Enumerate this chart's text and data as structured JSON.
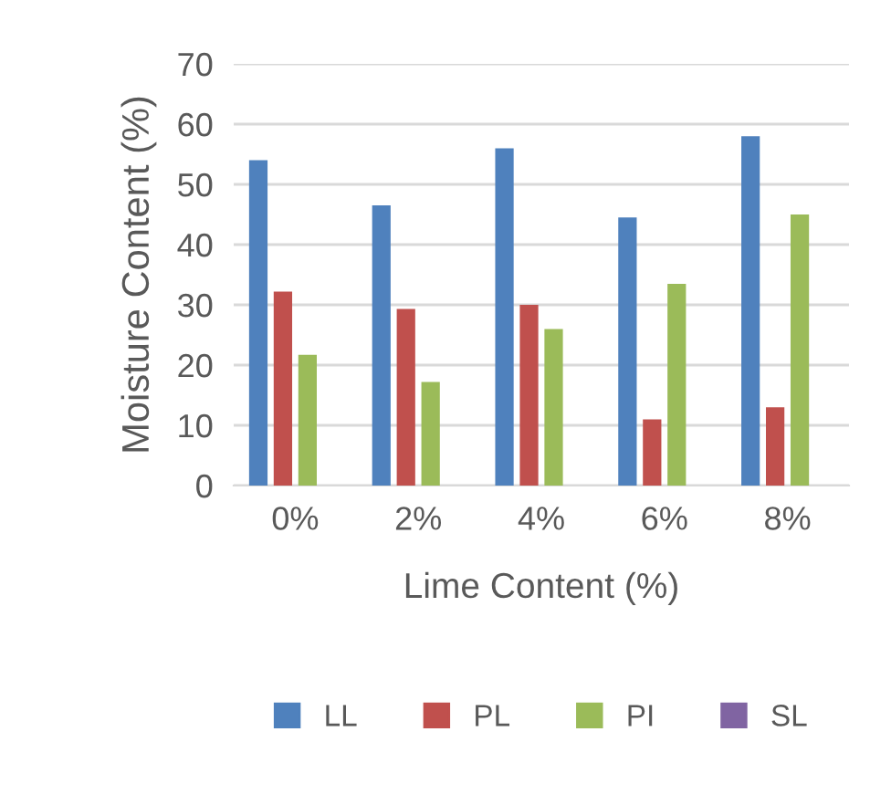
{
  "chart_data": {
    "type": "bar",
    "xlabel": "Lime Content (%)",
    "ylabel": "Moisture Content (%)",
    "categories": [
      "0%",
      "2%",
      "4%",
      "6%",
      "8%"
    ],
    "series": [
      {
        "name": "LL",
        "color": "#4f81bd",
        "values": [
          54,
          46.5,
          56,
          44.5,
          58
        ]
      },
      {
        "name": "PL",
        "color": "#c0504d",
        "values": [
          32.2,
          29.3,
          30,
          11,
          13
        ]
      },
      {
        "name": "PI",
        "color": "#9bbb59",
        "values": [
          21.7,
          17.2,
          26,
          33.5,
          45
        ]
      },
      {
        "name": "SL",
        "color": "#8064a2",
        "values": [
          null,
          null,
          null,
          null,
          null
        ]
      }
    ],
    "ylim": [
      0,
      70
    ],
    "yticks": [
      0,
      10,
      20,
      30,
      40,
      50,
      60,
      70
    ],
    "grid": "y",
    "legend": "bottom"
  }
}
